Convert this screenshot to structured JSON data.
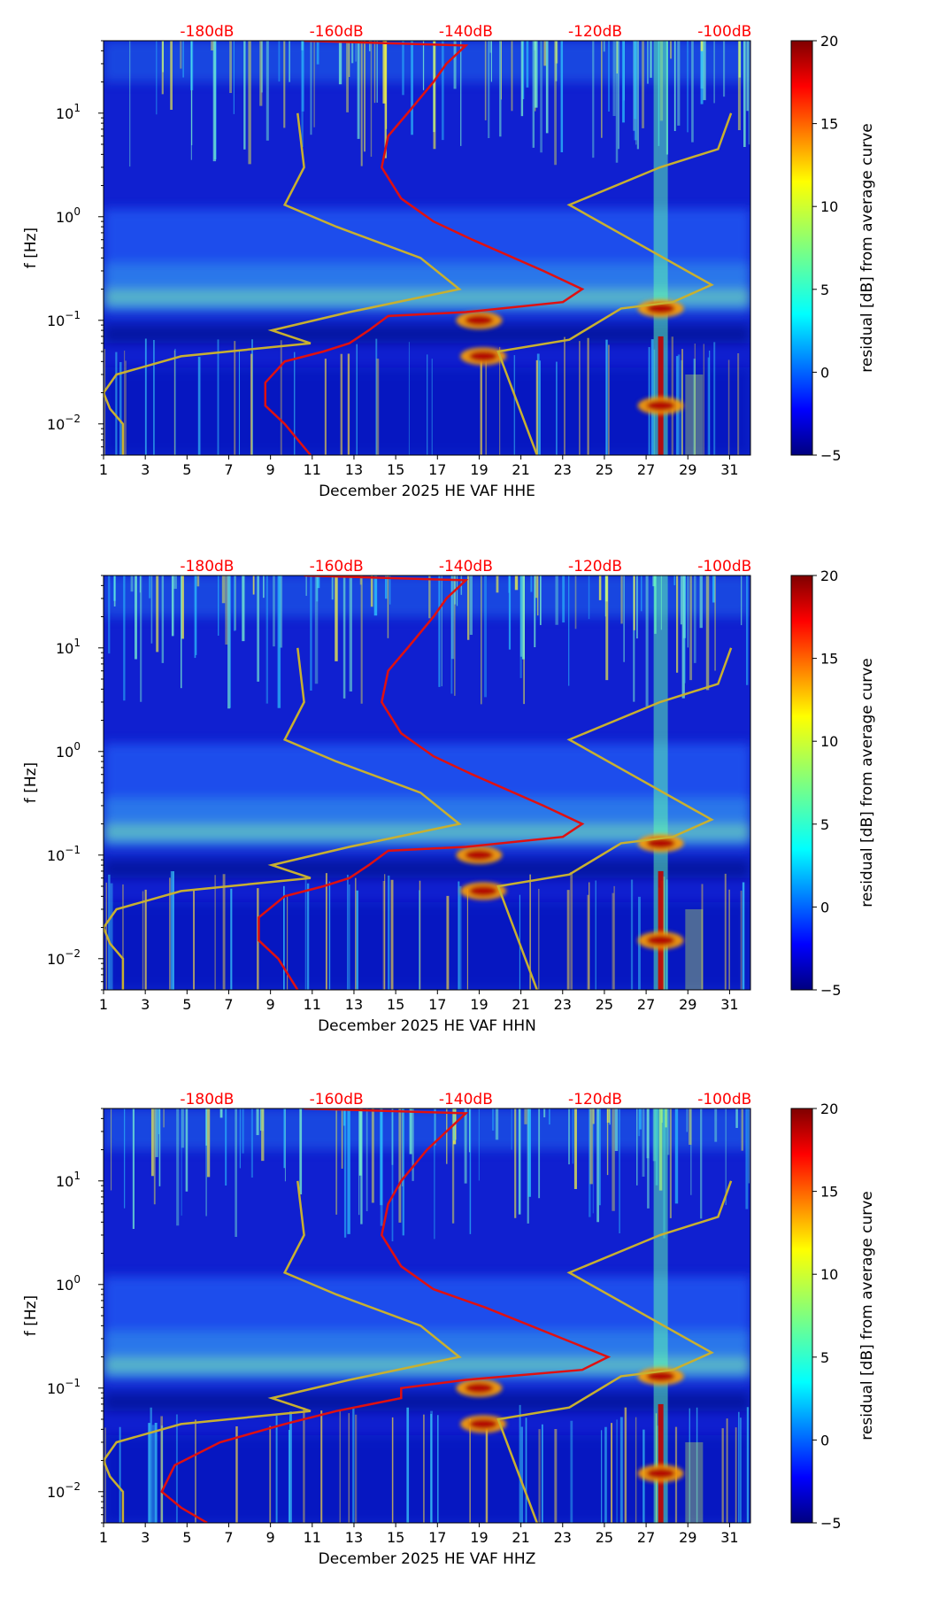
{
  "chart_data": [
    {
      "type": "heatmap",
      "xlabel": "December 2025 HE VAF  HHE",
      "ylabel": "f [Hz]",
      "colorbar_label": "residual [dB] from average curve",
      "colorbar_ticks": [
        "20",
        "15",
        "10",
        "5",
        "0",
        "−5"
      ],
      "top_labels": [
        "-180dB",
        "-160dB",
        "-140dB",
        "-120dB",
        "-100dB"
      ],
      "x_ticks": [
        "1",
        "3",
        "5",
        "7",
        "9",
        "11",
        "13",
        "15",
        "17",
        "19",
        "21",
        "23",
        "25",
        "27",
        "29",
        "31"
      ],
      "xlim": [
        1,
        32
      ],
      "ylim": [
        0.005,
        50
      ],
      "red_curve": [
        [
          -165,
          50
        ],
        [
          -140,
          45
        ],
        [
          -143,
          30
        ],
        [
          -145,
          20
        ],
        [
          -149,
          10
        ],
        [
          -152,
          6
        ],
        [
          -153,
          3
        ],
        [
          -150,
          1.5
        ],
        [
          -145,
          0.9
        ],
        [
          -139,
          0.6
        ],
        [
          -128,
          0.3
        ],
        [
          -122,
          0.2
        ],
        [
          -125,
          0.15
        ],
        [
          -140,
          0.12
        ],
        [
          -152,
          0.11
        ],
        [
          -155,
          0.08
        ],
        [
          -158,
          0.06
        ],
        [
          -162,
          0.05
        ],
        [
          -168,
          0.04
        ],
        [
          -171,
          0.025
        ],
        [
          -171,
          0.015
        ],
        [
          -168,
          0.01
        ],
        [
          -164,
          0.005
        ]
      ],
      "yellow_curve": [
        [
          -166,
          10
        ],
        [
          -165,
          3
        ],
        [
          -168,
          1.3
        ],
        [
          -160,
          0.8
        ],
        [
          -147,
          0.4
        ],
        [
          -141,
          0.2
        ],
        [
          -158,
          0.12
        ],
        [
          -170,
          0.08
        ],
        [
          -164,
          0.06
        ],
        [
          -184,
          0.045
        ],
        [
          -194,
          0.03
        ],
        [
          -196,
          0.02
        ],
        [
          -195,
          0.014
        ],
        [
          -193,
          0.01
        ],
        [
          -193,
          0.005
        ]
      ],
      "yellow_curve_right": [
        [
          -99,
          10
        ],
        [
          -101,
          4.5
        ],
        [
          -110,
          3
        ],
        [
          -124,
          1.3
        ],
        [
          -102,
          0.22
        ],
        [
          -108,
          0.15
        ],
        [
          -116,
          0.13
        ],
        [
          -124,
          0.065
        ],
        [
          -135,
          0.05
        ],
        [
          -129,
          0.005
        ]
      ],
      "hot_spots": [
        {
          "day": 19,
          "f": 0.1
        },
        {
          "day": 19.2,
          "f": 0.045
        },
        {
          "day": 27.7,
          "f": 0.13
        },
        {
          "day": 27.7,
          "f": 0.015
        }
      ]
    },
    {
      "type": "heatmap",
      "xlabel": "December 2025 HE VAF  HHN",
      "ylabel": "f [Hz]",
      "colorbar_label": "residual [dB] from average curve",
      "colorbar_ticks": [
        "20",
        "15",
        "10",
        "5",
        "0",
        "−5"
      ],
      "top_labels": [
        "-180dB",
        "-160dB",
        "-140dB",
        "-120dB",
        "-100dB"
      ],
      "x_ticks": [
        "1",
        "3",
        "5",
        "7",
        "9",
        "11",
        "13",
        "15",
        "17",
        "19",
        "21",
        "23",
        "25",
        "27",
        "29",
        "31"
      ],
      "xlim": [
        1,
        32
      ],
      "ylim": [
        0.005,
        50
      ],
      "red_curve": [
        [
          -165,
          50
        ],
        [
          -140,
          45
        ],
        [
          -143,
          30
        ],
        [
          -145,
          20
        ],
        [
          -149,
          10
        ],
        [
          -152,
          6
        ],
        [
          -153,
          3
        ],
        [
          -150,
          1.5
        ],
        [
          -145,
          0.9
        ],
        [
          -139,
          0.6
        ],
        [
          -128,
          0.3
        ],
        [
          -122,
          0.2
        ],
        [
          -125,
          0.15
        ],
        [
          -140,
          0.12
        ],
        [
          -152,
          0.11
        ],
        [
          -155,
          0.08
        ],
        [
          -158,
          0.06
        ],
        [
          -162,
          0.05
        ],
        [
          -168,
          0.04
        ],
        [
          -172,
          0.025
        ],
        [
          -172,
          0.015
        ],
        [
          -169,
          0.01
        ],
        [
          -166,
          0.005
        ]
      ],
      "yellow_curve": [
        [
          -166,
          10
        ],
        [
          -165,
          3
        ],
        [
          -168,
          1.3
        ],
        [
          -160,
          0.8
        ],
        [
          -147,
          0.4
        ],
        [
          -141,
          0.2
        ],
        [
          -158,
          0.12
        ],
        [
          -170,
          0.08
        ],
        [
          -164,
          0.06
        ],
        [
          -184,
          0.045
        ],
        [
          -194,
          0.03
        ],
        [
          -196,
          0.02
        ],
        [
          -195,
          0.014
        ],
        [
          -193,
          0.01
        ],
        [
          -193,
          0.005
        ]
      ],
      "yellow_curve_right": [
        [
          -99,
          10
        ],
        [
          -101,
          4.5
        ],
        [
          -110,
          3
        ],
        [
          -124,
          1.3
        ],
        [
          -102,
          0.22
        ],
        [
          -108,
          0.15
        ],
        [
          -116,
          0.13
        ],
        [
          -124,
          0.065
        ],
        [
          -135,
          0.05
        ],
        [
          -129,
          0.005
        ]
      ],
      "hot_spots": [
        {
          "day": 19,
          "f": 0.1
        },
        {
          "day": 19.2,
          "f": 0.045
        },
        {
          "day": 27.7,
          "f": 0.13
        },
        {
          "day": 27.7,
          "f": 0.015
        }
      ]
    },
    {
      "type": "heatmap",
      "xlabel": "December 2025 HE VAF  HHZ",
      "ylabel": "f [Hz]",
      "colorbar_label": "residual [dB] from average curve",
      "colorbar_ticks": [
        "20",
        "15",
        "10",
        "5",
        "0",
        "−5"
      ],
      "top_labels": [
        "-180dB",
        "-160dB",
        "-140dB",
        "-120dB",
        "-100dB"
      ],
      "x_ticks": [
        "1",
        "3",
        "5",
        "7",
        "9",
        "11",
        "13",
        "15",
        "17",
        "19",
        "21",
        "23",
        "25",
        "27",
        "29",
        "31"
      ],
      "xlim": [
        1,
        32
      ],
      "ylim": [
        0.005,
        50
      ],
      "red_curve": [
        [
          -165,
          50
        ],
        [
          -140,
          45
        ],
        [
          -143,
          30
        ],
        [
          -146,
          20
        ],
        [
          -150,
          10
        ],
        [
          -152,
          6
        ],
        [
          -153,
          3
        ],
        [
          -150,
          1.5
        ],
        [
          -145,
          0.9
        ],
        [
          -137,
          0.6
        ],
        [
          -125,
          0.3
        ],
        [
          -118,
          0.2
        ],
        [
          -122,
          0.15
        ],
        [
          -140,
          0.12
        ],
        [
          -150,
          0.1
        ],
        [
          -150,
          0.08
        ],
        [
          -160,
          0.06
        ],
        [
          -168,
          0.045
        ],
        [
          -178,
          0.03
        ],
        [
          -185,
          0.018
        ],
        [
          -187,
          0.01
        ],
        [
          -184,
          0.007
        ],
        [
          -180,
          0.005
        ]
      ],
      "yellow_curve": [
        [
          -166,
          10
        ],
        [
          -165,
          3
        ],
        [
          -168,
          1.3
        ],
        [
          -160,
          0.8
        ],
        [
          -147,
          0.4
        ],
        [
          -141,
          0.2
        ],
        [
          -158,
          0.12
        ],
        [
          -170,
          0.08
        ],
        [
          -164,
          0.06
        ],
        [
          -184,
          0.045
        ],
        [
          -194,
          0.03
        ],
        [
          -196,
          0.02
        ],
        [
          -195,
          0.014
        ],
        [
          -193,
          0.01
        ],
        [
          -193,
          0.005
        ]
      ],
      "yellow_curve_right": [
        [
          -99,
          10
        ],
        [
          -101,
          4.5
        ],
        [
          -110,
          3
        ],
        [
          -124,
          1.3
        ],
        [
          -102,
          0.22
        ],
        [
          -108,
          0.15
        ],
        [
          -116,
          0.13
        ],
        [
          -124,
          0.065
        ],
        [
          -135,
          0.05
        ],
        [
          -129,
          0.005
        ]
      ],
      "hot_spots": [
        {
          "day": 19,
          "f": 0.1
        },
        {
          "day": 19.2,
          "f": 0.045
        },
        {
          "day": 27.7,
          "f": 0.13
        },
        {
          "day": 27.7,
          "f": 0.015
        }
      ]
    }
  ]
}
